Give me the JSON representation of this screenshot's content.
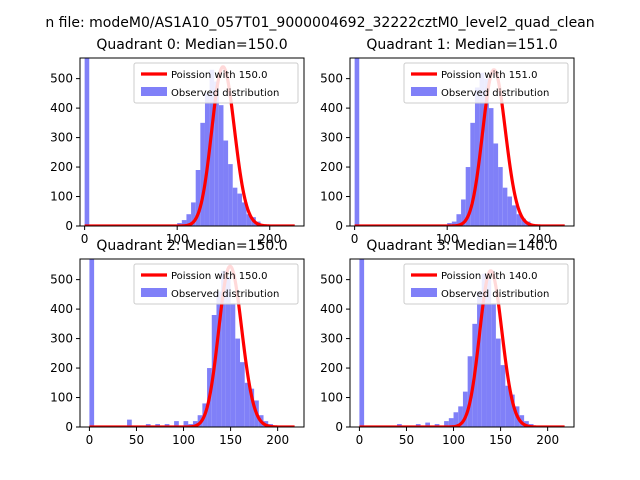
{
  "figure": {
    "suptitle": "n file: modeM0/AS1A10_057T01_9000004692_32222cztM0_level2_quad_clean"
  },
  "style": {
    "bar_color": "#8080f8",
    "line_color": "#ff0000",
    "axis_color": "#000000"
  },
  "chart_data": [
    {
      "type": "bar",
      "title": "Quadrant 0: Median=150.0",
      "xlim": [
        -5,
        237
      ],
      "ylim": [
        0,
        570
      ],
      "xticks": [
        0,
        100,
        200
      ],
      "yticks": [
        0,
        100,
        200,
        300,
        400,
        500
      ],
      "bin_width": 5,
      "histogram": {
        "label": "Observed distribution",
        "bins": [
          {
            "x": 0,
            "count": 570
          },
          {
            "x": 95,
            "count": 5
          },
          {
            "x": 100,
            "count": 10
          },
          {
            "x": 105,
            "count": 20
          },
          {
            "x": 110,
            "count": 40
          },
          {
            "x": 115,
            "count": 80
          },
          {
            "x": 120,
            "count": 190
          },
          {
            "x": 125,
            "count": 350
          },
          {
            "x": 130,
            "count": 450
          },
          {
            "x": 135,
            "count": 530
          },
          {
            "x": 140,
            "count": 490
          },
          {
            "x": 145,
            "count": 410
          },
          {
            "x": 150,
            "count": 290
          },
          {
            "x": 155,
            "count": 210
          },
          {
            "x": 160,
            "count": 130
          },
          {
            "x": 165,
            "count": 110
          },
          {
            "x": 170,
            "count": 80
          },
          {
            "x": 175,
            "count": 40
          },
          {
            "x": 180,
            "count": 30
          },
          {
            "x": 185,
            "count": 15
          }
        ]
      },
      "curve": {
        "label": "Poission with 150.0",
        "mean": 150.0,
        "peak": 540
      },
      "legend_position": "top-right"
    },
    {
      "type": "bar",
      "title": "Quadrant 1: Median=151.0",
      "xlim": [
        -5,
        237
      ],
      "ylim": [
        0,
        570
      ],
      "xticks": [
        0,
        100,
        200
      ],
      "yticks": [
        0,
        100,
        200,
        300,
        400,
        500
      ],
      "bin_width": 5,
      "histogram": {
        "label": "Observed distribution",
        "bins": [
          {
            "x": 0,
            "count": 570
          },
          {
            "x": 90,
            "count": 5
          },
          {
            "x": 100,
            "count": 10
          },
          {
            "x": 105,
            "count": 15
          },
          {
            "x": 110,
            "count": 40
          },
          {
            "x": 115,
            "count": 90
          },
          {
            "x": 120,
            "count": 200
          },
          {
            "x": 125,
            "count": 350
          },
          {
            "x": 130,
            "count": 470
          },
          {
            "x": 135,
            "count": 520
          },
          {
            "x": 140,
            "count": 500
          },
          {
            "x": 145,
            "count": 400
          },
          {
            "x": 150,
            "count": 280
          },
          {
            "x": 155,
            "count": 200
          },
          {
            "x": 160,
            "count": 130
          },
          {
            "x": 165,
            "count": 100
          },
          {
            "x": 170,
            "count": 70
          },
          {
            "x": 175,
            "count": 40
          },
          {
            "x": 180,
            "count": 25
          },
          {
            "x": 185,
            "count": 15
          }
        ]
      },
      "curve": {
        "label": "Poission with 151.0",
        "mean": 151.0,
        "peak": 530
      },
      "legend_position": "top-right"
    },
    {
      "type": "bar",
      "title": "Quadrant 2: Median=150.0",
      "xlim": [
        -10,
        228
      ],
      "ylim": [
        0,
        570
      ],
      "xticks": [
        0,
        50,
        100,
        150,
        200
      ],
      "yticks": [
        0,
        100,
        200,
        300,
        400,
        500
      ],
      "bin_width": 5,
      "histogram": {
        "label": "Observed distribution",
        "bins": [
          {
            "x": 0,
            "count": 570
          },
          {
            "x": 40,
            "count": 25
          },
          {
            "x": 60,
            "count": 10
          },
          {
            "x": 70,
            "count": 10
          },
          {
            "x": 80,
            "count": 10
          },
          {
            "x": 90,
            "count": 20
          },
          {
            "x": 100,
            "count": 20
          },
          {
            "x": 105,
            "count": 10
          },
          {
            "x": 110,
            "count": 20
          },
          {
            "x": 115,
            "count": 40
          },
          {
            "x": 120,
            "count": 80
          },
          {
            "x": 125,
            "count": 200
          },
          {
            "x": 130,
            "count": 380
          },
          {
            "x": 135,
            "count": 460
          },
          {
            "x": 140,
            "count": 530
          },
          {
            "x": 145,
            "count": 510
          },
          {
            "x": 150,
            "count": 420
          },
          {
            "x": 155,
            "count": 300
          },
          {
            "x": 160,
            "count": 220
          },
          {
            "x": 165,
            "count": 150
          },
          {
            "x": 170,
            "count": 130
          },
          {
            "x": 175,
            "count": 90
          },
          {
            "x": 180,
            "count": 40
          },
          {
            "x": 185,
            "count": 20
          },
          {
            "x": 190,
            "count": 10
          }
        ]
      },
      "curve": {
        "label": "Poission with 150.0",
        "mean": 150.0,
        "peak": 545
      },
      "legend_position": "top-right"
    },
    {
      "type": "bar",
      "title": "Quadrant 3: Median=140.0",
      "xlim": [
        -10,
        228
      ],
      "ylim": [
        0,
        570
      ],
      "xticks": [
        0,
        50,
        100,
        150,
        200
      ],
      "yticks": [
        0,
        100,
        200,
        300,
        400,
        500
      ],
      "bin_width": 5,
      "histogram": {
        "label": "Observed distribution",
        "bins": [
          {
            "x": 0,
            "count": 570
          },
          {
            "x": 40,
            "count": 10
          },
          {
            "x": 60,
            "count": 10
          },
          {
            "x": 70,
            "count": 15
          },
          {
            "x": 80,
            "count": 10
          },
          {
            "x": 90,
            "count": 20
          },
          {
            "x": 95,
            "count": 30
          },
          {
            "x": 100,
            "count": 50
          },
          {
            "x": 105,
            "count": 70
          },
          {
            "x": 110,
            "count": 120
          },
          {
            "x": 115,
            "count": 240
          },
          {
            "x": 120,
            "count": 350
          },
          {
            "x": 125,
            "count": 460
          },
          {
            "x": 130,
            "count": 520
          },
          {
            "x": 135,
            "count": 500
          },
          {
            "x": 140,
            "count": 420
          },
          {
            "x": 145,
            "count": 300
          },
          {
            "x": 150,
            "count": 210
          },
          {
            "x": 155,
            "count": 140
          },
          {
            "x": 160,
            "count": 110
          },
          {
            "x": 165,
            "count": 70
          },
          {
            "x": 170,
            "count": 40
          },
          {
            "x": 175,
            "count": 20
          },
          {
            "x": 180,
            "count": 10
          }
        ]
      },
      "curve": {
        "label": "Poission with 140.0",
        "mean": 140.0,
        "peak": 530
      },
      "legend_position": "top-right"
    }
  ]
}
